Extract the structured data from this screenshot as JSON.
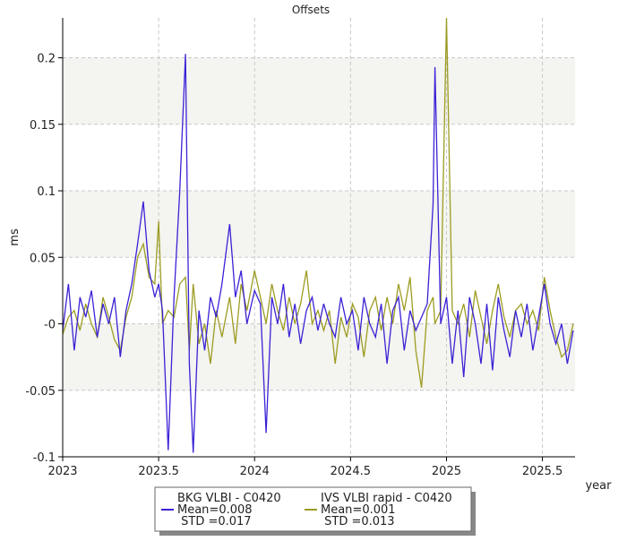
{
  "chart_data": {
    "type": "line",
    "title": "Offsets",
    "x_label": "year",
    "y_label": "ms",
    "xlim": [
      2023,
      2025.67
    ],
    "xticks": [
      2023,
      2023.5,
      2024,
      2024.5,
      2025,
      2025.5
    ],
    "ylim": [
      -0.1,
      0.23
    ],
    "yticks": [
      -0.1,
      -0.05,
      {
        "value": 0,
        "label": "-0"
      },
      0.05,
      0.1,
      0.15,
      0.2
    ],
    "grid": true,
    "x": [
      2023.0,
      2023.03,
      2023.06,
      2023.09,
      2023.12,
      2023.15,
      2023.18,
      2023.21,
      2023.24,
      2023.27,
      2023.3,
      2023.33,
      2023.36,
      2023.39,
      2023.42,
      2023.45,
      2023.48,
      2023.5,
      2023.52,
      2023.55,
      2023.58,
      2023.61,
      2023.64,
      2023.66,
      2023.68,
      2023.71,
      2023.74,
      2023.77,
      2023.8,
      2023.83,
      2023.87,
      2023.9,
      2023.93,
      2023.96,
      2024.0,
      2024.03,
      2024.06,
      2024.09,
      2024.12,
      2024.15,
      2024.18,
      2024.21,
      2024.24,
      2024.27,
      2024.3,
      2024.33,
      2024.36,
      2024.39,
      2024.42,
      2024.45,
      2024.48,
      2024.51,
      2024.54,
      2024.57,
      2024.6,
      2024.63,
      2024.66,
      2024.69,
      2024.72,
      2024.75,
      2024.78,
      2024.81,
      2024.84,
      2024.87,
      2024.9,
      2024.93,
      2024.94,
      2024.97,
      2025.0,
      2025.03,
      2025.06,
      2025.09,
      2025.12,
      2025.15,
      2025.18,
      2025.21,
      2025.24,
      2025.27,
      2025.3,
      2025.33,
      2025.36,
      2025.39,
      2025.42,
      2025.45,
      2025.48,
      2025.51,
      2025.54,
      2025.57,
      2025.6,
      2025.63,
      2025.66
    ],
    "series": [
      {
        "name": "BKG VLBI - C0420",
        "mean_label": "Mean=0.008",
        "std_label": " STD =0.017",
        "color": "#3a22d6",
        "values": [
          -0.005,
          0.03,
          -0.02,
          0.02,
          0.005,
          0.025,
          -0.01,
          0.015,
          0.0,
          0.02,
          -0.025,
          0.01,
          0.03,
          0.06,
          0.092,
          0.04,
          0.02,
          0.03,
          0.01,
          -0.095,
          0.02,
          0.1,
          0.203,
          -0.03,
          -0.097,
          0.01,
          -0.02,
          0.02,
          0.005,
          0.03,
          0.075,
          0.02,
          0.04,
          0.0,
          0.025,
          0.015,
          -0.082,
          0.02,
          0.0,
          0.03,
          -0.01,
          0.015,
          -0.015,
          0.01,
          0.02,
          -0.005,
          0.015,
          0.0,
          -0.01,
          0.02,
          0.0,
          0.01,
          -0.02,
          0.02,
          0.0,
          -0.01,
          0.015,
          -0.03,
          0.01,
          0.02,
          -0.02,
          0.01,
          -0.005,
          0.005,
          0.015,
          0.09,
          0.193,
          0.0,
          0.02,
          -0.03,
          0.01,
          -0.04,
          0.02,
          0.0,
          -0.03,
          0.015,
          -0.035,
          0.02,
          -0.005,
          -0.025,
          0.01,
          -0.01,
          0.015,
          -0.02,
          0.005,
          0.03,
          0.0,
          -0.015,
          0.0,
          -0.03,
          -0.005
        ]
      },
      {
        "name": "IVS VLBI rapid - C0420",
        "mean_label": "Mean=0.001",
        "std_label": " STD =0.013",
        "color": "#9c9c22",
        "values": [
          -0.008,
          0.005,
          0.01,
          -0.005,
          0.015,
          0.0,
          -0.01,
          0.02,
          0.005,
          -0.012,
          -0.02,
          0.005,
          0.02,
          0.05,
          0.06,
          0.035,
          0.03,
          0.077,
          0.0,
          0.01,
          0.005,
          0.03,
          0.035,
          -0.02,
          0.03,
          -0.015,
          0.0,
          -0.03,
          0.01,
          -0.01,
          0.02,
          -0.015,
          0.03,
          0.01,
          0.04,
          0.02,
          0.0,
          0.03,
          0.01,
          -0.005,
          0.02,
          0.0,
          0.015,
          0.04,
          0.0,
          0.01,
          -0.005,
          0.01,
          -0.03,
          0.005,
          -0.01,
          0.015,
          0.005,
          -0.025,
          0.01,
          0.02,
          -0.005,
          0.02,
          0.0,
          0.03,
          0.01,
          0.035,
          -0.02,
          -0.048,
          0.01,
          0.02,
          0.0,
          0.01,
          0.23,
          0.01,
          0.0,
          0.015,
          -0.01,
          0.025,
          0.005,
          -0.015,
          0.01,
          0.03,
          0.005,
          -0.01,
          0.01,
          0.015,
          0.0,
          0.01,
          -0.005,
          0.035,
          0.01,
          -0.01,
          -0.025,
          -0.02,
          0.0
        ]
      }
    ]
  }
}
